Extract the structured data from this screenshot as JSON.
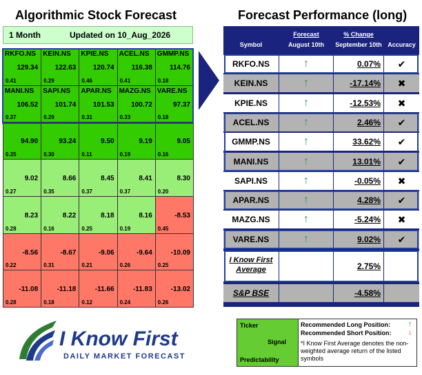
{
  "left_title": "Algorithmic Stock Forecast",
  "right_title": "Forecast Performance (long)",
  "left_header": {
    "horizon": "1 Month",
    "updated": "Updated on 10_Aug_2026"
  },
  "grid": [
    [
      {
        "sym": "RKFO.NS",
        "val": "129.34",
        "pred": "0.41"
      },
      {
        "sym": "KEIN.NS",
        "val": "122.63",
        "pred": "0.29"
      },
      {
        "sym": "KPIE.NS",
        "val": "120.74",
        "pred": "0.46"
      },
      {
        "sym": "ACEL.NS",
        "val": "116.38",
        "pred": "0.41"
      },
      {
        "sym": "GMMP.NS",
        "val": "114.76",
        "pred": "0.18"
      }
    ],
    [
      {
        "sym": "MANI.NS",
        "val": "106.52",
        "pred": "0.37"
      },
      {
        "sym": "SAPI.NS",
        "val": "101.74",
        "pred": "0.29"
      },
      {
        "sym": "APAR.NS",
        "val": "101.53",
        "pred": "0.31"
      },
      {
        "sym": "MAZG.NS",
        "val": "100.72",
        "pred": "0.33"
      },
      {
        "sym": "VARE.NS",
        "val": "97.37",
        "pred": "0.18"
      }
    ],
    [
      {
        "sym": "",
        "val": "94.90",
        "pred": "0.35"
      },
      {
        "sym": "",
        "val": "93.24",
        "pred": "0.30"
      },
      {
        "sym": "",
        "val": "9.50",
        "pred": "0.11"
      },
      {
        "sym": "",
        "val": "9.19",
        "pred": "0.19"
      },
      {
        "sym": "",
        "val": "9.05",
        "pred": "0.16"
      }
    ],
    [
      {
        "sym": "",
        "val": "9.02",
        "pred": "0.27"
      },
      {
        "sym": "",
        "val": "8.66",
        "pred": "0.35"
      },
      {
        "sym": "",
        "val": "8.45",
        "pred": "0.37"
      },
      {
        "sym": "",
        "val": "8.41",
        "pred": "0.37"
      },
      {
        "sym": "",
        "val": "8.30",
        "pred": "0.20"
      }
    ],
    [
      {
        "sym": "",
        "val": "8.23",
        "pred": "0.28"
      },
      {
        "sym": "",
        "val": "8.22",
        "pred": "0.16"
      },
      {
        "sym": "",
        "val": "8.18",
        "pred": "0.25"
      },
      {
        "sym": "",
        "val": "8.16",
        "pred": "0.19"
      },
      {
        "sym": "",
        "val": "-8.53",
        "pred": "0.45"
      }
    ],
    [
      {
        "sym": "",
        "val": "-8.56",
        "pred": "0.22"
      },
      {
        "sym": "",
        "val": "-8.67",
        "pred": "0.31"
      },
      {
        "sym": "",
        "val": "-9.06",
        "pred": "0.21"
      },
      {
        "sym": "",
        "val": "-9.64",
        "pred": "0.26"
      },
      {
        "sym": "",
        "val": "-10.09",
        "pred": "0.25"
      }
    ],
    [
      {
        "sym": "",
        "val": "-11.08",
        "pred": "0.28"
      },
      {
        "sym": "",
        "val": "-11.18",
        "pred": "0.18"
      },
      {
        "sym": "",
        "val": "-11.66",
        "pred": "0.12"
      },
      {
        "sym": "",
        "val": "-11.83",
        "pred": "0.24"
      },
      {
        "sym": "",
        "val": "-13.02",
        "pred": "0.26"
      }
    ]
  ],
  "colors": {
    "strong_green": "#33cc00",
    "light_green": "#99ee77",
    "red": "#ff7766",
    "navy": "#1a237e",
    "row_gray": "#b3b3b3"
  },
  "perf_header": {
    "symbol": "Symbol",
    "forecast": "Forecast",
    "forecast_date": "August 10th",
    "change": "% Change",
    "change_date": "September 10th",
    "accuracy": "Accuracy"
  },
  "perf_rows": [
    {
      "sym": "RKFO.NS",
      "arrow": "↑",
      "pct": "0.07%",
      "acc": "✔"
    },
    {
      "sym": "KEIN.NS",
      "arrow": "↑",
      "pct": "-17.14%",
      "acc": "✖"
    },
    {
      "sym": "KPIE.NS",
      "arrow": "↑",
      "pct": "-12.53%",
      "acc": "✖"
    },
    {
      "sym": "ACEL.NS",
      "arrow": "↑",
      "pct": "2.46%",
      "acc": "✔"
    },
    {
      "sym": "GMMP.NS",
      "arrow": "↑",
      "pct": "33.62%",
      "acc": "✔"
    },
    {
      "sym": "MANI.NS",
      "arrow": "↑",
      "pct": "13.01%",
      "acc": "✔"
    },
    {
      "sym": "SAPI.NS",
      "arrow": "↑",
      "pct": "-0.05%",
      "acc": "✖"
    },
    {
      "sym": "APAR.NS",
      "arrow": "↑",
      "pct": "4.28%",
      "acc": "✔"
    },
    {
      "sym": "MAZG.NS",
      "arrow": "↑",
      "pct": "-5.24%",
      "acc": "✖"
    },
    {
      "sym": "VARE.NS",
      "arrow": "↑",
      "pct": "9.02%",
      "acc": "✔"
    }
  ],
  "average": {
    "label_line1": "I Know First",
    "label_line2": "Average",
    "pct": "2.75%"
  },
  "benchmark": {
    "label": "S&P BSE",
    "pct": "-4.58%"
  },
  "logo": {
    "brand": "I Know First",
    "tagline": "DAILY MARKET FORECAST"
  },
  "legend": {
    "ticker": "Ticker",
    "signal": "Signal",
    "predictability": "Predictability",
    "long_pos": "Recommended Long Position:",
    "short_pos": "Recommended Short Position:",
    "note": "*I Know First Average denotes the non-weighted average return of the listed symbols"
  }
}
